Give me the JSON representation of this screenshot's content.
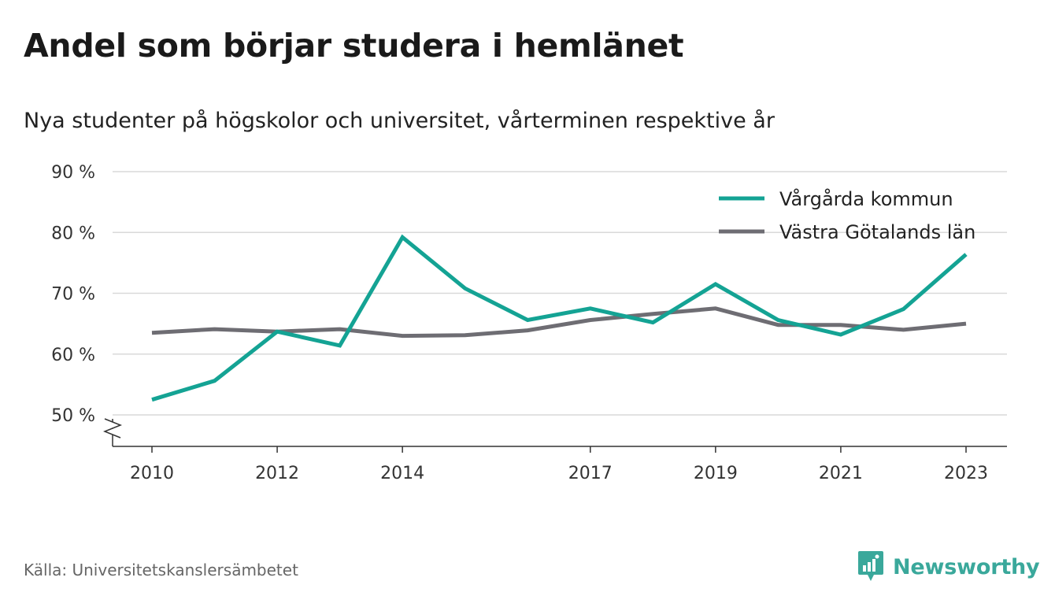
{
  "title": "Andel som börjar studera i hemlänet",
  "subtitle": "Nya studenter på högskolor och universitet, vårterminen respektive år",
  "source": "Källa: Universitetskanslersämbetet",
  "brand": "Newsworthy",
  "colors": {
    "series1": "#14a394",
    "series2": "#6e6d73",
    "grid": "#d9d9d9",
    "brand": "#3aa89b"
  },
  "chart_data": {
    "type": "line",
    "x": [
      2010,
      2011,
      2012,
      2013,
      2014,
      2015,
      2016,
      2017,
      2018,
      2019,
      2020,
      2021,
      2022,
      2023
    ],
    "x_tick_labels": [
      "2010",
      "2012",
      "2014",
      "2017",
      "2019",
      "2021",
      "2023"
    ],
    "y_tick_labels": [
      "50 %",
      "60 %",
      "70 %",
      "80 %",
      "90 %"
    ],
    "ylim": [
      50,
      90
    ],
    "y_ticks": [
      50,
      60,
      70,
      80,
      90
    ],
    "axis_break": true,
    "grid": true,
    "legend_position": "top-right",
    "series": [
      {
        "name": "Vårgårda kommun",
        "color": "#14a394",
        "values": [
          52.5,
          55.6,
          63.7,
          61.4,
          79.2,
          70.8,
          65.6,
          67.5,
          65.2,
          71.5,
          65.6,
          63.2,
          67.4,
          76.4
        ]
      },
      {
        "name": "Västra Götalands län",
        "color": "#6e6d73",
        "values": [
          63.5,
          64.1,
          63.7,
          64.1,
          63.0,
          63.1,
          63.9,
          65.6,
          66.6,
          67.5,
          64.8,
          64.8,
          64.0,
          65.0
        ]
      }
    ]
  }
}
